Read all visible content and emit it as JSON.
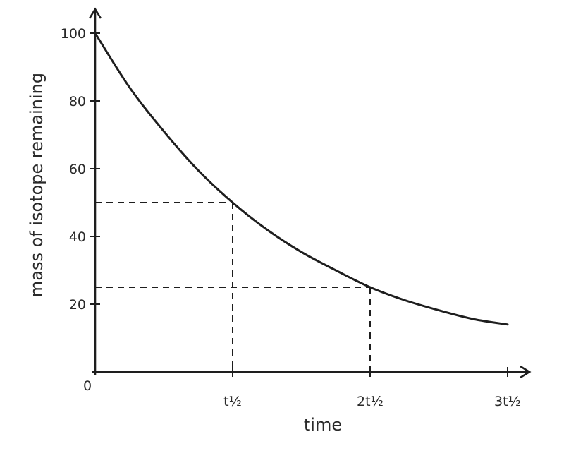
{
  "chart_data": {
    "type": "line",
    "title": "",
    "xlabel": "time",
    "ylabel": "mass of isotope remaining",
    "origin_label": "0",
    "xlim": [
      0,
      3
    ],
    "ylim": [
      0,
      100
    ],
    "x_ticks": [
      {
        "value": 1,
        "label": "t½"
      },
      {
        "value": 2,
        "label": "2t½"
      },
      {
        "value": 3,
        "label": "3t½"
      }
    ],
    "y_ticks": [
      {
        "value": 20,
        "label": "20"
      },
      {
        "value": 40,
        "label": "40"
      },
      {
        "value": 60,
        "label": "60"
      },
      {
        "value": 80,
        "label": "80"
      },
      {
        "value": 100,
        "label": "100"
      }
    ],
    "series": [
      {
        "x": [
          0,
          0.25,
          0.5,
          0.75,
          1,
          1.25,
          1.5,
          1.75,
          2,
          2.25,
          2.5,
          2.75,
          3
        ],
        "y": [
          100,
          84,
          71,
          59.5,
          50,
          42,
          35.4,
          30,
          25,
          21.2,
          18.2,
          15.6,
          14
        ]
      }
    ],
    "reference_lines": [
      {
        "x": 1,
        "y": 50
      },
      {
        "x": 2,
        "y": 25
      }
    ],
    "grid": false,
    "legend": "none"
  }
}
